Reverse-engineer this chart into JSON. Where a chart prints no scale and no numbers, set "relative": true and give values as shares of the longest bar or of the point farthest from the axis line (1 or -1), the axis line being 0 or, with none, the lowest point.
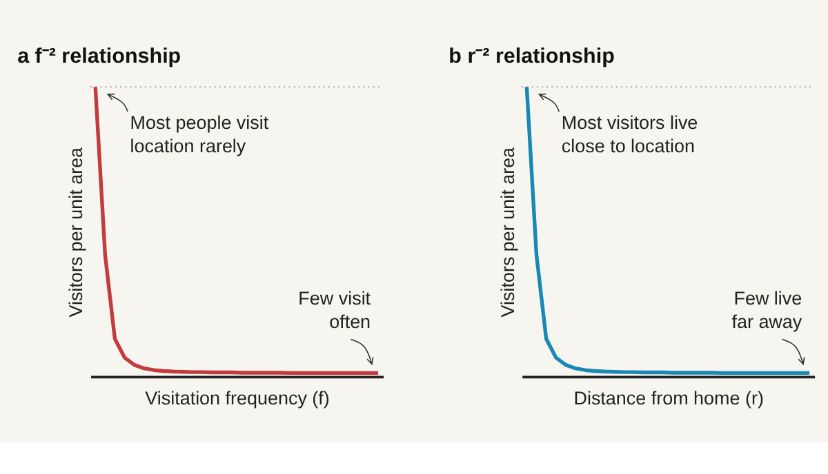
{
  "chart_data": [
    {
      "type": "line",
      "title": "a  f⁻² relationship",
      "xlabel": "Visitation frequency (f)",
      "ylabel": "Visitors per unit area",
      "relative": true,
      "categories": [
        null,
        null,
        null,
        null,
        null,
        null,
        null,
        null,
        null,
        null,
        null,
        null,
        null,
        null,
        null,
        null,
        null,
        null,
        null,
        null,
        null,
        null,
        null,
        null,
        null,
        null,
        null,
        null,
        null,
        null
      ],
      "series": [
        {
          "color": "#c23b3e",
          "values": [
            1.0,
            0.42,
            0.13,
            0.065,
            0.04,
            0.028,
            0.022,
            0.019,
            0.017,
            0.016,
            0.015,
            0.015,
            0.014,
            0.014,
            0.014,
            0.013,
            0.013,
            0.013,
            0.013,
            0.013,
            0.012,
            0.012,
            0.012,
            0.012,
            0.012,
            0.012,
            0.012,
            0.012,
            0.012,
            0.012
          ]
        }
      ],
      "ref_lines": [
        {
          "axis": "y",
          "value": 1,
          "line_style": "dotted",
          "color": "#999999"
        }
      ],
      "annotations": [
        "Most people visit location rarely",
        "Few visit often"
      ],
      "grid": false,
      "tick_labels": false
    },
    {
      "type": "line",
      "title": "b  r⁻² relationship",
      "xlabel": "Distance from home (r)",
      "ylabel": "Visitors per unit area",
      "relative": true,
      "categories": [
        null,
        null,
        null,
        null,
        null,
        null,
        null,
        null,
        null,
        null,
        null,
        null,
        null,
        null,
        null,
        null,
        null,
        null,
        null,
        null,
        null,
        null,
        null,
        null,
        null,
        null,
        null,
        null,
        null,
        null
      ],
      "series": [
        {
          "color": "#1a88b4",
          "values": [
            1.0,
            0.42,
            0.13,
            0.065,
            0.04,
            0.028,
            0.022,
            0.019,
            0.017,
            0.016,
            0.015,
            0.015,
            0.014,
            0.014,
            0.014,
            0.013,
            0.013,
            0.013,
            0.013,
            0.013,
            0.012,
            0.012,
            0.012,
            0.012,
            0.012,
            0.012,
            0.012,
            0.012,
            0.012,
            0.012
          ]
        }
      ],
      "ref_lines": [
        {
          "axis": "y",
          "value": 1,
          "line_style": "dotted",
          "color": "#999999"
        }
      ],
      "annotations": [
        "Most visitors live close to location",
        "Few live far away"
      ],
      "grid": false,
      "tick_labels": false
    }
  ]
}
